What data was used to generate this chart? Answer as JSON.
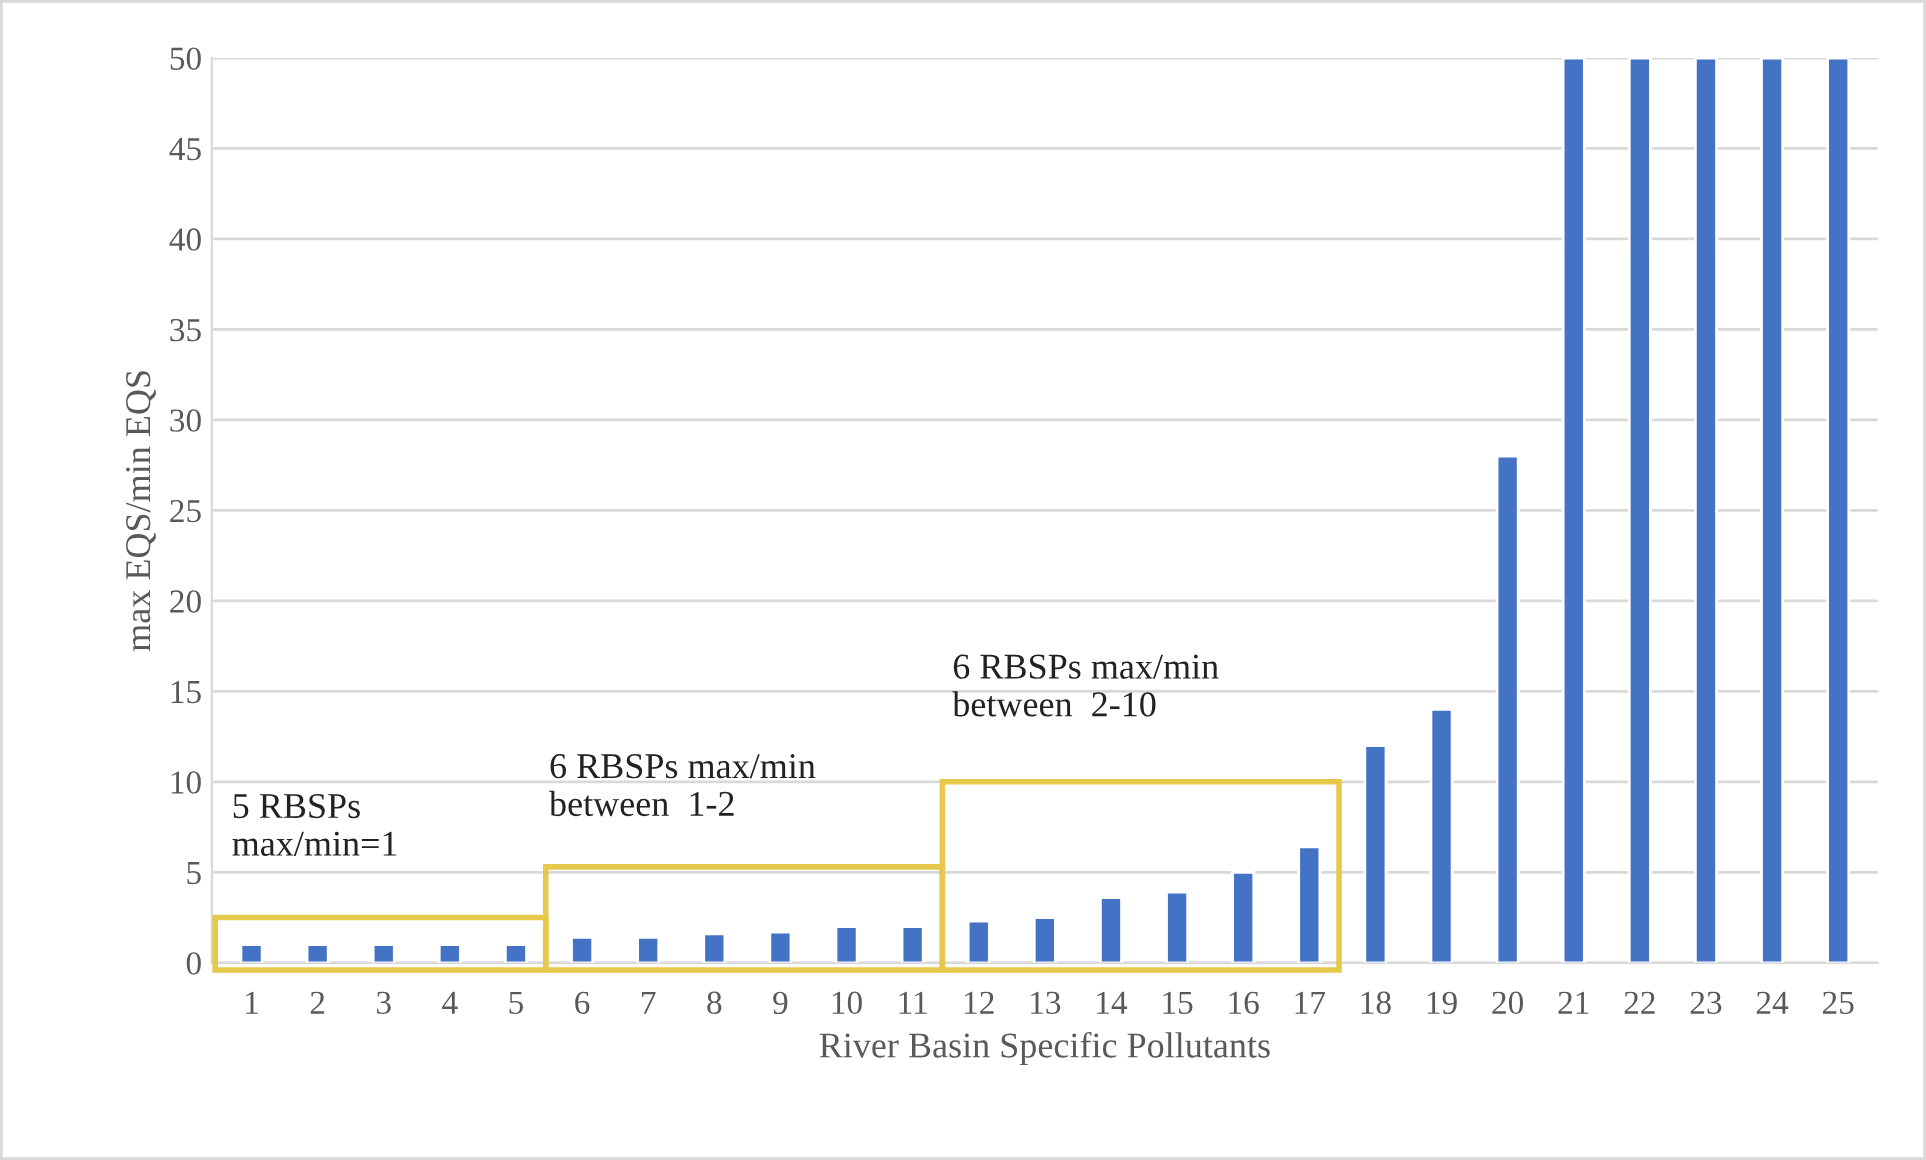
{
  "chart_data": {
    "type": "bar",
    "xlabel": "River Basin Specific Pollutants",
    "ylabel": "max EQS/min EQS",
    "categories": [
      "1",
      "2",
      "3",
      "4",
      "5",
      "6",
      "7",
      "8",
      "9",
      "10",
      "11",
      "12",
      "13",
      "14",
      "15",
      "16",
      "17",
      "18",
      "19",
      "20",
      "21",
      "22",
      "23",
      "24",
      "25"
    ],
    "values": [
      1,
      1,
      1,
      1,
      1,
      1.4,
      1.4,
      1.6,
      1.7,
      2,
      2,
      2.3,
      2.5,
      3.6,
      3.9,
      5,
      6.4,
      12,
      14,
      28,
      50,
      50,
      50,
      50,
      50
    ],
    "color": "#4472c4",
    "ylim": [
      0,
      50
    ],
    "yticks": [
      0,
      5,
      10,
      15,
      20,
      25,
      30,
      35,
      40,
      45,
      50
    ],
    "grid": "y",
    "annotations": [
      "5 RBSPs\nmax/min=1",
      "6 RBSPs max/min\nbetween  1-2",
      "6 RBSPs max/min\nbetween  2-10"
    ]
  }
}
